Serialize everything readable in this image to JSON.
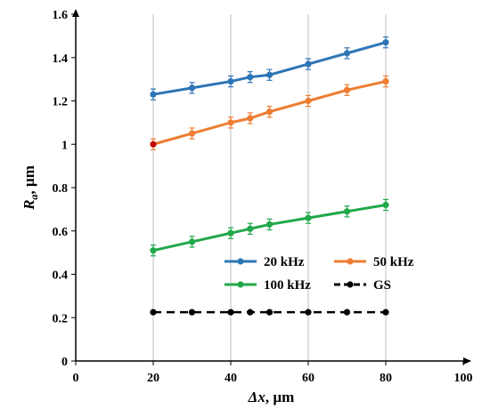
{
  "chart_data": {
    "type": "line",
    "xlabel": {
      "main": "Δx",
      "unit": ", µm"
    },
    "ylabel": {
      "main": "R",
      "sub": "a",
      "unit": ", µm"
    },
    "xlim": [
      0,
      100
    ],
    "ylim": [
      0,
      1.6
    ],
    "xticks": [
      0,
      20,
      40,
      60,
      80,
      100
    ],
    "yticks": [
      0,
      0.2,
      0.4,
      0.6,
      0.8,
      1,
      1.2,
      1.4,
      1.6
    ],
    "ytick_labels": [
      "0",
      "0.2",
      "0.4",
      "0.6",
      "0.8",
      "1",
      "1.2",
      "1.4",
      "1.6"
    ],
    "grid": "vertical",
    "legend_position": "lower-right",
    "x": [
      20,
      30,
      40,
      45,
      50,
      60,
      70,
      80
    ],
    "series": [
      {
        "name": "20 kHz",
        "color": "#2e75b6",
        "dash": "solid",
        "error_bars": true,
        "values": [
          1.23,
          1.26,
          1.29,
          1.31,
          1.32,
          1.37,
          1.42,
          1.47
        ]
      },
      {
        "name": "50 kHz",
        "color": "#ed7d31",
        "dash": "solid",
        "error_bars": true,
        "first_point_color": "#c00000",
        "values": [
          1.0,
          1.05,
          1.1,
          1.12,
          1.15,
          1.2,
          1.25,
          1.29
        ]
      },
      {
        "name": "100 kHz",
        "color": "#21a84a",
        "dash": "solid",
        "error_bars": true,
        "values": [
          0.51,
          0.55,
          0.59,
          0.61,
          0.63,
          0.66,
          0.69,
          0.72
        ]
      },
      {
        "name": "GS",
        "color": "#000000",
        "dash": "dashed",
        "error_bars": false,
        "values": [
          0.225,
          0.225,
          0.225,
          0.225,
          0.225,
          0.225,
          0.225,
          0.225
        ]
      }
    ]
  }
}
